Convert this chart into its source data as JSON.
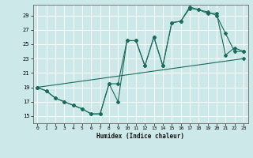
{
  "xlabel": "Humidex (Indice chaleur)",
  "background_color": "#cde8e8",
  "grid_color": "#ffffff",
  "line_color": "#1a6b5a",
  "xlim": [
    -0.5,
    23.5
  ],
  "ylim": [
    14.0,
    30.5
  ],
  "yticks": [
    15,
    17,
    19,
    21,
    23,
    25,
    27,
    29
  ],
  "xticks": [
    0,
    1,
    2,
    3,
    4,
    5,
    6,
    7,
    8,
    9,
    10,
    11,
    12,
    13,
    14,
    15,
    16,
    17,
    18,
    19,
    20,
    21,
    22,
    23
  ],
  "line1_x": [
    0,
    23
  ],
  "line1_y": [
    19.0,
    23.0
  ],
  "line2_x": [
    0,
    1,
    2,
    3,
    4,
    5,
    6,
    7,
    8,
    9,
    10,
    11,
    12,
    13,
    14,
    15,
    16,
    17,
    18,
    19,
    20,
    21,
    22,
    23
  ],
  "line2_y": [
    19.0,
    18.5,
    17.5,
    17.0,
    16.5,
    16.0,
    15.3,
    15.3,
    19.5,
    17.0,
    25.5,
    25.5,
    22.0,
    26.0,
    22.0,
    28.0,
    28.2,
    30.0,
    29.8,
    29.3,
    29.3,
    23.5,
    24.5,
    24.0
  ],
  "line3_x": [
    0,
    1,
    2,
    3,
    4,
    5,
    6,
    7,
    8,
    9,
    10,
    11,
    12,
    13,
    14,
    15,
    16,
    17,
    18,
    19,
    20,
    21,
    22,
    23
  ],
  "line3_y": [
    19.0,
    18.5,
    17.5,
    17.0,
    16.5,
    16.0,
    15.3,
    15.3,
    19.5,
    19.5,
    25.5,
    25.5,
    22.0,
    26.0,
    22.0,
    28.0,
    28.2,
    30.2,
    29.8,
    29.5,
    29.0,
    26.5,
    24.0,
    24.0
  ]
}
